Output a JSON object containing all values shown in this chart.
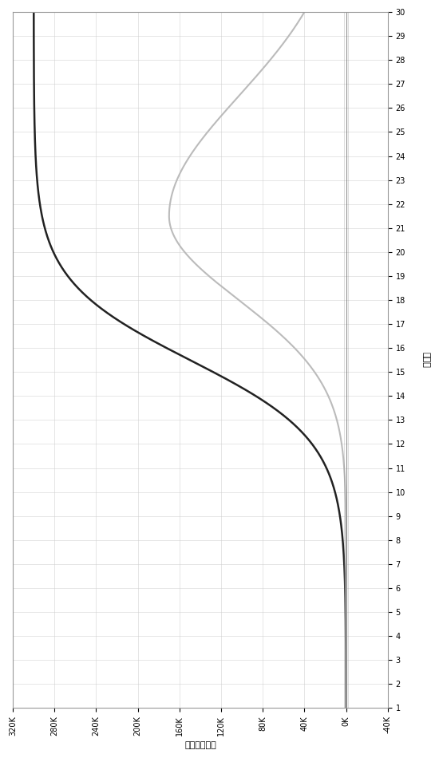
{
  "xlabel": "相对荧光强度",
  "ylabel": "循环数",
  "xlim": [
    320000,
    -40000
  ],
  "ylim": [
    1,
    30
  ],
  "xtick_values": [
    320000,
    280000,
    240000,
    200000,
    160000,
    120000,
    80000,
    40000,
    0,
    -40000
  ],
  "xtick_labels": [
    "320K",
    "280K",
    "240K",
    "200K",
    "160K",
    "120K",
    "80K",
    "40K",
    "0K",
    "-40K"
  ],
  "ytick_values": [
    1,
    2,
    3,
    4,
    5,
    6,
    7,
    8,
    9,
    10,
    11,
    12,
    13,
    14,
    15,
    16,
    17,
    18,
    19,
    20,
    21,
    22,
    23,
    24,
    25,
    26,
    27,
    28,
    29,
    30
  ],
  "curve1_color": "#222222",
  "curve2_color": "#bbbbbb",
  "bg_color": "#ffffff",
  "grid_color": "#cccccc",
  "grid_alpha": 0.7
}
